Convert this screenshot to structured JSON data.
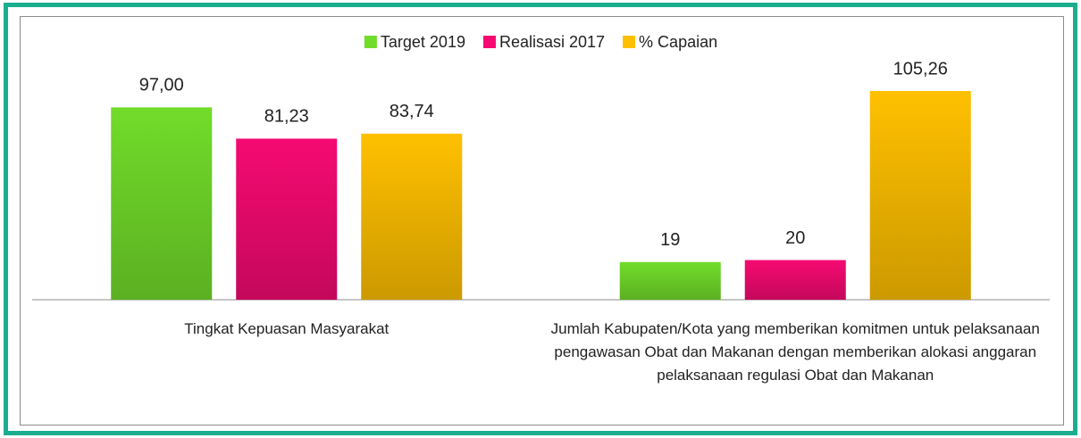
{
  "chart_data": {
    "type": "bar",
    "categories": [
      "Tingkat Kepuasan Masyarakat",
      "Jumlah Kabupaten/Kota yang memberikan komitmen untuk pelaksanaan pengawasan Obat dan Makanan dengan memberikan alokasi anggaran pelaksanaan regulasi Obat dan Makanan"
    ],
    "series": [
      {
        "name": "Target 2019",
        "color": "#72dc2a",
        "values": [
          97,
          19
        ],
        "value_labels": [
          "97,00",
          "19"
        ]
      },
      {
        "name": "Realisasi 2017",
        "color": "#f50a72",
        "values": [
          81.23,
          20
        ],
        "value_labels": [
          "81,23",
          "20"
        ]
      },
      {
        "name": "% Capaian",
        "color": "#ffc000",
        "values": [
          83.74,
          105.26
        ],
        "value_labels": [
          "83,74",
          "105,26"
        ]
      }
    ],
    "legend": "top"
  }
}
